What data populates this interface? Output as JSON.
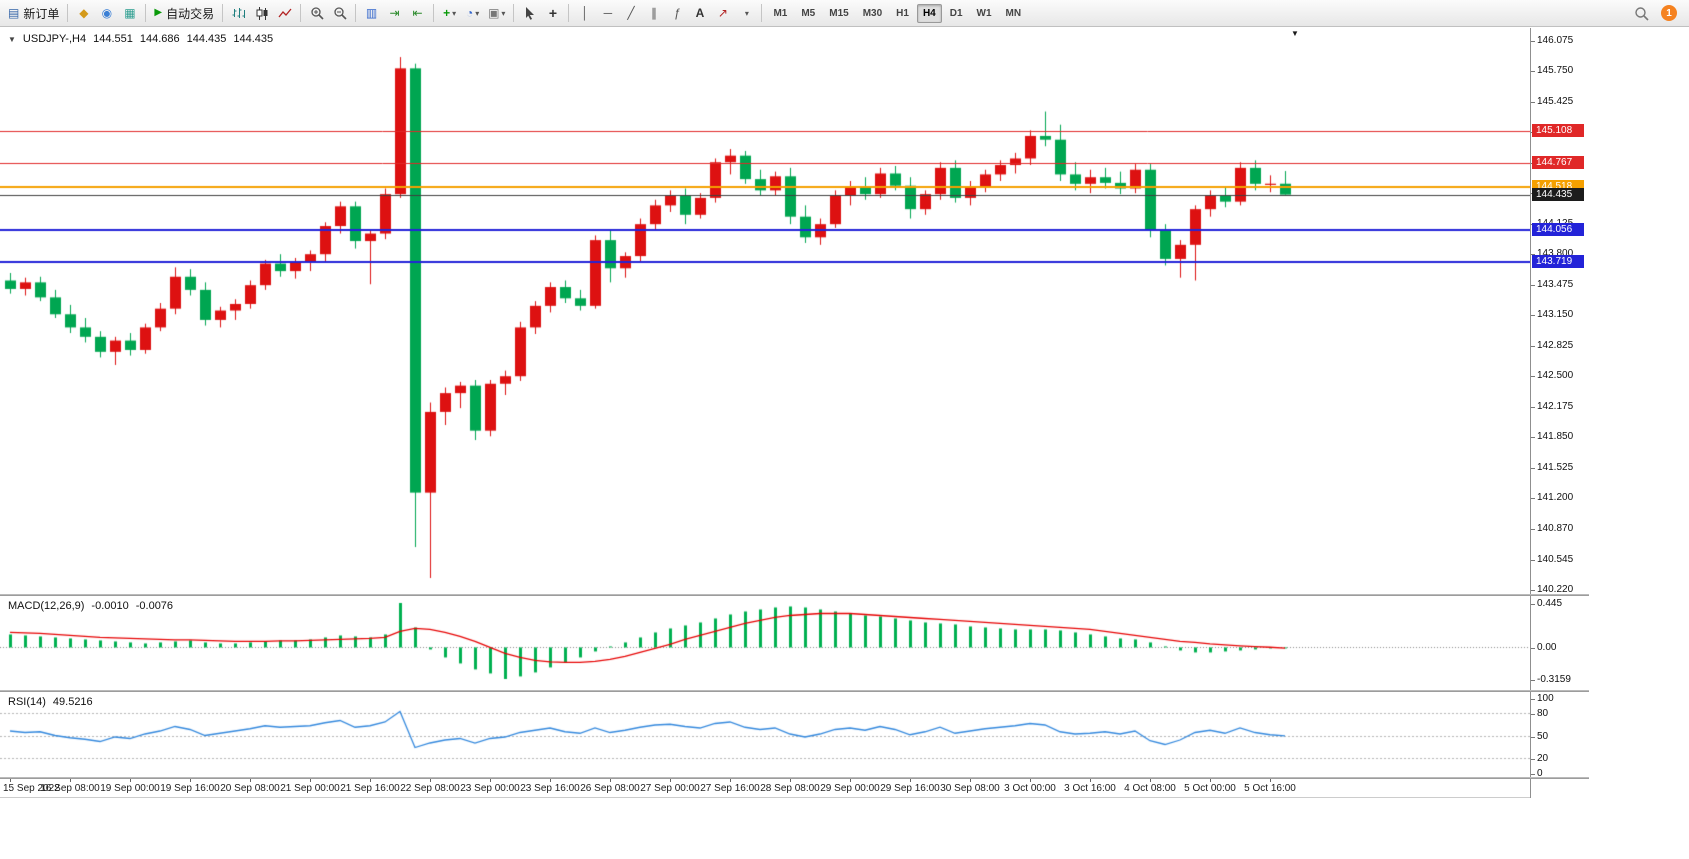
{
  "toolbar": {
    "new_order_label": "新订单",
    "autotrading_label": "自动交易",
    "timeframes": [
      "M1",
      "M5",
      "M15",
      "M30",
      "H1",
      "H4",
      "D1",
      "W1",
      "MN"
    ],
    "active_timeframe": "H4",
    "notification_count": "1"
  },
  "icons": {
    "one_click_arrow": "▼",
    "new_order": "▤",
    "market_watch": "◆",
    "navigator": "◉",
    "terminal": "▦",
    "play": "▶",
    "tile_windows": "▥",
    "auto_scroll": "⇥",
    "chart_shift": "⇤",
    "new_chart": "+",
    "periods_clock": "◔",
    "template": "▣",
    "crosshair": "+",
    "vertical_line": "│",
    "horizontal_line": "─",
    "trend_line": "╱",
    "channel": "∥",
    "fibonacci": "ƒ",
    "text_tool": "A",
    "arrow_tool": "↗",
    "dropdown": "▾",
    "shift_marker": "▼"
  },
  "chart": {
    "symbol_period": "USDJPY-,H4",
    "open": "144.551",
    "high": "144.686",
    "low": "144.435",
    "close": "144.435"
  },
  "price_axis": {
    "ticks": [
      "146.075",
      "145.750",
      "145.425",
      "145.100",
      "144.775",
      "144.450",
      "144.125",
      "143.800",
      "143.475",
      "143.150",
      "142.825",
      "142.500",
      "142.175",
      "141.850",
      "141.525",
      "141.200",
      "140.870",
      "140.545",
      "140.220"
    ]
  },
  "lines": [
    {
      "label": "145.108",
      "price": 145.108,
      "color": "#e02828",
      "width": 1
    },
    {
      "label": "144.767",
      "price": 144.767,
      "color": "#e02828",
      "width": 1
    },
    {
      "label": "144.518",
      "price": 144.518,
      "color": "#f5a000",
      "width": 2
    },
    {
      "label": "144.435",
      "price": 144.435,
      "color": "#3f3f3f",
      "width": 1,
      "is_bid": true,
      "label_bg": "#1c1c1c"
    },
    {
      "label": "144.056",
      "price": 144.056,
      "color": "#2323d8",
      "width": 2
    },
    {
      "label": "143.719",
      "price": 143.719,
      "color": "#2323d8",
      "width": 2
    }
  ],
  "chart_data": {
    "type": "candlestick",
    "title": "USDJPY- H4",
    "label_every_n_candles": 4,
    "ylim": [
      140.18,
      146.21
    ],
    "colors": {
      "up": "#dd1111",
      "down": "#00a651",
      "macd_histogram": "#00b050",
      "macd_signal": "#e60000",
      "rsi_line": "#3388dd"
    },
    "x_labels": [
      "15 Sep 2022",
      "16 Sep 08:00",
      "19 Sep 00:00",
      "19 Sep 16:00",
      "20 Sep 08:00",
      "21 Sep 00:00",
      "21 Sep 16:00",
      "22 Sep 08:00",
      "23 Sep 00:00",
      "23 Sep 16:00",
      "26 Sep 08:00",
      "27 Sep 00:00",
      "27 Sep 16:00",
      "28 Sep 08:00",
      "29 Sep 00:00",
      "29 Sep 16:00",
      "30 Sep 08:00",
      "3 Oct 00:00",
      "3 Oct 16:00",
      "4 Oct 08:00",
      "5 Oct 00:00",
      "5 Oct 16:00"
    ],
    "candles": {
      "open": [
        143.52,
        143.43,
        143.5,
        143.34,
        143.16,
        143.02,
        142.92,
        142.76,
        142.88,
        142.78,
        143.02,
        143.22,
        143.56,
        143.42,
        143.1,
        143.2,
        143.27,
        143.47,
        143.7,
        143.62,
        143.72,
        143.8,
        144.1,
        144.31,
        143.94,
        144.02,
        144.44,
        145.78,
        141.26,
        142.12,
        142.32,
        142.4,
        141.92,
        142.42,
        142.5,
        143.02,
        143.25,
        143.45,
        143.33,
        143.25,
        143.95,
        143.65,
        143.78,
        144.12,
        144.32,
        144.42,
        144.22,
        144.4,
        144.78,
        144.85,
        144.6,
        144.48,
        144.63,
        144.2,
        143.98,
        144.12,
        144.42,
        144.52,
        144.44,
        144.66,
        144.53,
        144.28,
        144.44,
        144.72,
        144.4,
        144.52,
        144.65,
        144.75,
        144.82,
        145.06,
        145.02,
        144.65,
        144.55,
        144.62,
        144.56,
        144.5,
        144.7,
        144.05,
        143.75,
        143.9,
        144.28,
        144.42,
        144.36,
        144.72,
        144.55,
        144.551
      ],
      "high": [
        143.6,
        143.55,
        143.56,
        143.42,
        143.26,
        143.12,
        142.98,
        142.92,
        142.96,
        143.06,
        143.28,
        143.66,
        143.64,
        143.5,
        143.24,
        143.32,
        143.52,
        143.74,
        143.8,
        143.76,
        143.84,
        144.14,
        144.36,
        144.36,
        144.06,
        144.5,
        145.9,
        145.83,
        142.22,
        142.38,
        142.44,
        142.46,
        142.46,
        142.56,
        143.08,
        143.3,
        143.5,
        143.52,
        143.42,
        144.0,
        144.05,
        143.82,
        144.18,
        144.38,
        144.48,
        144.5,
        144.45,
        144.82,
        144.92,
        144.9,
        144.7,
        144.68,
        144.72,
        144.32,
        144.18,
        144.48,
        144.58,
        144.62,
        144.72,
        144.74,
        144.62,
        144.48,
        144.78,
        144.8,
        144.58,
        144.7,
        144.8,
        144.88,
        145.12,
        145.32,
        145.18,
        144.78,
        144.7,
        144.72,
        144.68,
        144.76,
        144.76,
        144.12,
        143.95,
        144.32,
        144.48,
        144.52,
        144.78,
        144.8,
        144.64,
        144.686
      ],
      "low": [
        143.38,
        143.36,
        143.3,
        143.12,
        142.96,
        142.86,
        142.7,
        142.62,
        142.72,
        142.74,
        142.98,
        143.16,
        143.36,
        143.04,
        143.02,
        143.1,
        143.22,
        143.42,
        143.56,
        143.54,
        143.62,
        143.72,
        144.02,
        143.86,
        143.48,
        143.96,
        144.4,
        140.68,
        140.35,
        141.98,
        142.16,
        141.82,
        141.86,
        142.3,
        142.45,
        142.95,
        143.18,
        143.28,
        143.2,
        143.22,
        143.5,
        143.55,
        143.72,
        144.05,
        144.25,
        144.12,
        144.18,
        144.35,
        144.65,
        144.55,
        144.42,
        144.42,
        144.12,
        143.92,
        143.9,
        144.08,
        144.32,
        144.38,
        144.4,
        144.48,
        144.18,
        144.22,
        144.38,
        144.35,
        144.32,
        144.46,
        144.58,
        144.66,
        144.75,
        144.95,
        144.58,
        144.48,
        144.45,
        144.5,
        144.44,
        144.45,
        143.98,
        143.68,
        143.55,
        143.52,
        144.2,
        144.3,
        144.32,
        144.48,
        144.46,
        144.435
      ],
      "close": [
        143.43,
        143.5,
        143.34,
        143.16,
        143.02,
        142.92,
        142.76,
        142.88,
        142.78,
        143.02,
        143.22,
        143.56,
        143.42,
        143.1,
        143.2,
        143.27,
        143.47,
        143.7,
        143.62,
        143.72,
        143.8,
        144.1,
        144.31,
        143.94,
        144.02,
        144.44,
        145.78,
        141.26,
        142.12,
        142.32,
        142.4,
        141.92,
        142.42,
        142.5,
        143.02,
        143.25,
        143.45,
        143.33,
        143.25,
        143.95,
        143.65,
        143.78,
        144.12,
        144.32,
        144.42,
        144.22,
        144.4,
        144.78,
        144.85,
        144.6,
        144.48,
        144.63,
        144.2,
        143.98,
        144.12,
        144.42,
        144.52,
        144.44,
        144.66,
        144.53,
        144.28,
        144.44,
        144.72,
        144.4,
        144.52,
        144.65,
        144.75,
        144.82,
        145.06,
        145.02,
        144.65,
        144.55,
        144.62,
        144.56,
        144.5,
        144.7,
        144.05,
        143.75,
        143.9,
        144.28,
        144.42,
        144.36,
        144.72,
        144.55,
        144.551,
        144.435
      ]
    },
    "indicators": {
      "macd": {
        "label": "MACD(12,26,9)",
        "main_value_text": "-0.0010",
        "signal_value_text": "-0.0076",
        "ylim": [
          -0.416,
          0.505
        ],
        "axis_ticks": [
          {
            "text": "0.445",
            "value": 0.445
          },
          {
            "text": "0.00",
            "value": 0
          },
          {
            "text": "-0.3159",
            "value": -0.3159
          }
        ],
        "histogram": [
          0.13,
          0.12,
          0.11,
          0.1,
          0.09,
          0.08,
          0.07,
          0.06,
          0.05,
          0.04,
          0.05,
          0.06,
          0.07,
          0.05,
          0.04,
          0.04,
          0.05,
          0.06,
          0.07,
          0.07,
          0.08,
          0.1,
          0.12,
          0.11,
          0.1,
          0.13,
          0.445,
          0.2,
          -0.02,
          -0.1,
          -0.16,
          -0.22,
          -0.26,
          -0.3159,
          -0.29,
          -0.25,
          -0.2,
          -0.15,
          -0.1,
          -0.04,
          0.01,
          0.05,
          0.1,
          0.15,
          0.19,
          0.22,
          0.25,
          0.29,
          0.33,
          0.36,
          0.38,
          0.4,
          0.41,
          0.4,
          0.38,
          0.36,
          0.34,
          0.32,
          0.31,
          0.29,
          0.27,
          0.25,
          0.24,
          0.23,
          0.21,
          0.2,
          0.19,
          0.18,
          0.18,
          0.18,
          0.17,
          0.15,
          0.13,
          0.11,
          0.09,
          0.08,
          0.05,
          0.01,
          -0.03,
          -0.05,
          -0.05,
          -0.04,
          -0.03,
          -0.02,
          -0.01,
          -0.001
        ],
        "signal": [
          0.15,
          0.145,
          0.14,
          0.13,
          0.12,
          0.11,
          0.1,
          0.095,
          0.09,
          0.085,
          0.08,
          0.075,
          0.075,
          0.07,
          0.065,
          0.06,
          0.06,
          0.06,
          0.065,
          0.065,
          0.07,
          0.075,
          0.08,
          0.085,
          0.09,
          0.1,
          0.16,
          0.19,
          0.18,
          0.15,
          0.11,
          0.06,
          0.0,
          -0.06,
          -0.1,
          -0.13,
          -0.145,
          -0.15,
          -0.15,
          -0.14,
          -0.12,
          -0.09,
          -0.05,
          -0.01,
          0.03,
          0.08,
          0.12,
          0.16,
          0.2,
          0.24,
          0.27,
          0.3,
          0.32,
          0.33,
          0.34,
          0.34,
          0.34,
          0.33,
          0.32,
          0.31,
          0.3,
          0.29,
          0.28,
          0.27,
          0.26,
          0.25,
          0.24,
          0.23,
          0.22,
          0.21,
          0.2,
          0.19,
          0.18,
          0.16,
          0.14,
          0.12,
          0.1,
          0.08,
          0.06,
          0.05,
          0.035,
          0.025,
          0.015,
          0.008,
          0.002,
          -0.0076
        ]
      },
      "rsi": {
        "label": "RSI(14)",
        "value_text": "49.5216",
        "range": [
          0,
          100
        ],
        "levels": [
          80,
          50,
          20
        ],
        "axis_ticks": [
          {
            "text": "100",
            "value": 100
          },
          {
            "text": "80",
            "value": 80
          },
          {
            "text": "50",
            "value": 50
          },
          {
            "text": "20",
            "value": 20
          },
          {
            "text": "0",
            "value": 0
          }
        ],
        "values": [
          56,
          54,
          55,
          50,
          47,
          45,
          42,
          48,
          46,
          52,
          56,
          62,
          58,
          50,
          53,
          56,
          59,
          63,
          61,
          62,
          63,
          67,
          70,
          61,
          63,
          68,
          82,
          34,
          40,
          44,
          46,
          40,
          46,
          48,
          54,
          57,
          60,
          55,
          53,
          60,
          54,
          57,
          61,
          64,
          65,
          62,
          60,
          66,
          68,
          61,
          58,
          60,
          52,
          48,
          52,
          58,
          60,
          57,
          62,
          58,
          51,
          55,
          61,
          53,
          56,
          59,
          61,
          63,
          66,
          64,
          55,
          52,
          53,
          55,
          52,
          56,
          43,
          38,
          44,
          54,
          57,
          53,
          60,
          54,
          51,
          49.52
        ]
      }
    }
  }
}
